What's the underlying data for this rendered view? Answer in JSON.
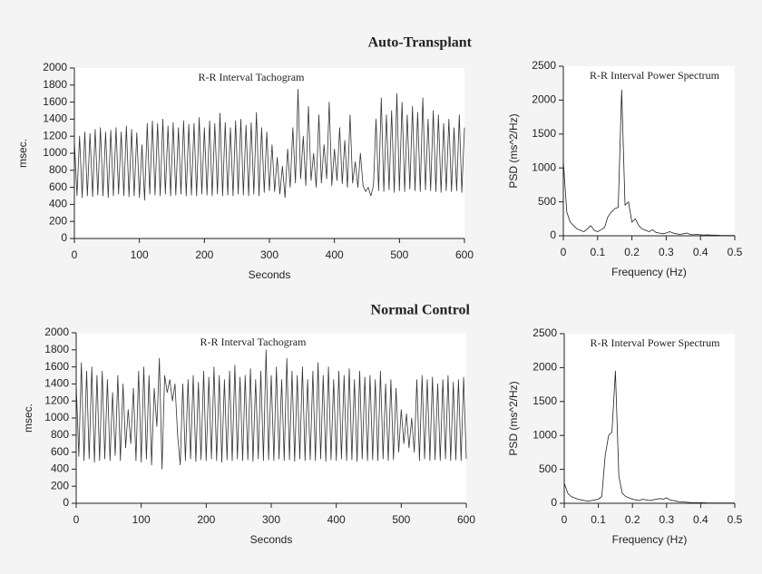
{
  "headings": [
    "Auto-Transplant",
    "Normal Control"
  ],
  "chart_data": [
    {
      "type": "line",
      "title": "R-R Interval Tachogram",
      "xlabel": "Seconds",
      "ylabel": "msec.",
      "color": "#333333",
      "xlim": [
        0,
        600
      ],
      "xticks": [
        0,
        100,
        200,
        300,
        400,
        500,
        600
      ],
      "ylim": [
        0,
        2000
      ],
      "yticks": [
        0,
        200,
        400,
        600,
        800,
        1000,
        1200,
        1400,
        1600,
        1800,
        2000
      ],
      "x": [
        0,
        4,
        8,
        12,
        16,
        20,
        24,
        28,
        32,
        36,
        40,
        44,
        48,
        52,
        56,
        60,
        64,
        68,
        72,
        76,
        80,
        84,
        88,
        92,
        96,
        100,
        104,
        108,
        112,
        116,
        120,
        124,
        128,
        132,
        136,
        140,
        144,
        148,
        152,
        156,
        160,
        164,
        168,
        172,
        176,
        180,
        184,
        188,
        192,
        196,
        200,
        204,
        208,
        212,
        216,
        220,
        224,
        228,
        232,
        236,
        240,
        244,
        248,
        252,
        256,
        260,
        264,
        268,
        272,
        276,
        280,
        284,
        288,
        292,
        296,
        300,
        304,
        308,
        312,
        316,
        320,
        324,
        328,
        332,
        336,
        340,
        344,
        348,
        352,
        356,
        360,
        364,
        368,
        372,
        376,
        380,
        384,
        388,
        392,
        396,
        400,
        404,
        408,
        412,
        416,
        420,
        424,
        428,
        432,
        436,
        440,
        444,
        448,
        452,
        456,
        460,
        464,
        468,
        472,
        476,
        480,
        484,
        488,
        492,
        496,
        500,
        504,
        508,
        512,
        516,
        520,
        524,
        528,
        532,
        536,
        540,
        544,
        548,
        552,
        556,
        560,
        564,
        568,
        572,
        576,
        580,
        584,
        588,
        592,
        596,
        600
      ],
      "values": [
        1150,
        500,
        1200,
        480,
        1250,
        500,
        1230,
        490,
        1280,
        510,
        1300,
        500,
        1250,
        480,
        1270,
        500,
        1300,
        520,
        1250,
        500,
        1320,
        490,
        1280,
        500,
        1240,
        480,
        1100,
        450,
        1350,
        520,
        1380,
        510,
        1350,
        500,
        1400,
        520,
        1320,
        500,
        1360,
        510,
        1300,
        520,
        1380,
        500,
        1340,
        510,
        1350,
        500,
        1420,
        520,
        1300,
        510,
        1380,
        500,
        1350,
        520,
        1470,
        500,
        1360,
        510,
        1300,
        500,
        1380,
        520,
        1400,
        510,
        1330,
        500,
        1360,
        520,
        1480,
        500,
        1300,
        540,
        1250,
        560,
        1100,
        550,
        950,
        520,
        850,
        480,
        1050,
        600,
        1300,
        650,
        1750,
        700,
        1200,
        620,
        1550,
        680,
        1000,
        600,
        1450,
        650,
        1100,
        700,
        1600,
        620,
        1050,
        680,
        1300,
        640,
        1150,
        600,
        1450,
        650,
        900,
        600,
        1000,
        620,
        550,
        600,
        500,
        620,
        1400,
        560,
        1650,
        550,
        1450,
        570,
        1500,
        540,
        1700,
        560,
        1600,
        550,
        1450,
        580,
        1550,
        560,
        1480,
        550,
        1650,
        570,
        1400,
        560,
        1500,
        550,
        1450,
        540,
        1350,
        560,
        1400,
        550,
        1300,
        560,
        1450,
        540,
        1300
      ]
    },
    {
      "type": "line",
      "title": "R-R Interval Power Spectrum",
      "xlabel": "Frequency (Hz)",
      "ylabel": "PSD (ms^2/Hz)",
      "color": "#222222",
      "xlim": [
        0,
        0.5
      ],
      "xticks": [
        0,
        0.1,
        0.2,
        0.3,
        0.4,
        0.5
      ],
      "ylim": [
        0,
        2500
      ],
      "yticks": [
        0,
        500,
        1000,
        1500,
        2000,
        2500
      ],
      "x": [
        0,
        0.01,
        0.02,
        0.03,
        0.04,
        0.05,
        0.06,
        0.07,
        0.08,
        0.09,
        0.1,
        0.11,
        0.12,
        0.13,
        0.14,
        0.15,
        0.16,
        0.17,
        0.18,
        0.19,
        0.2,
        0.21,
        0.22,
        0.23,
        0.24,
        0.25,
        0.26,
        0.27,
        0.28,
        0.29,
        0.3,
        0.31,
        0.32,
        0.33,
        0.34,
        0.35,
        0.36,
        0.37,
        0.38,
        0.39,
        0.4,
        0.41,
        0.42,
        0.43,
        0.44,
        0.45,
        0.46,
        0.47,
        0.48,
        0.49,
        0.5
      ],
      "values": [
        1100,
        350,
        200,
        150,
        100,
        80,
        60,
        100,
        150,
        80,
        60,
        90,
        120,
        280,
        350,
        400,
        420,
        2150,
        450,
        500,
        200,
        250,
        150,
        100,
        80,
        60,
        90,
        50,
        40,
        30,
        40,
        60,
        40,
        30,
        20,
        30,
        40,
        20,
        15,
        20,
        15,
        10,
        15,
        10,
        10,
        8,
        5,
        5,
        5,
        5,
        5
      ]
    },
    {
      "type": "line",
      "title": "R-R Interval Tachogram",
      "xlabel": "Seconds",
      "ylabel": "msec.",
      "color": "#333333",
      "xlim": [
        0,
        600
      ],
      "xticks": [
        0,
        100,
        200,
        300,
        400,
        500,
        600
      ],
      "ylim": [
        0,
        2000
      ],
      "yticks": [
        0,
        200,
        400,
        600,
        800,
        1000,
        1200,
        1400,
        1600,
        1800,
        2000
      ],
      "x": [
        0,
        4,
        8,
        12,
        16,
        20,
        24,
        28,
        32,
        36,
        40,
        44,
        48,
        52,
        56,
        60,
        64,
        68,
        72,
        76,
        80,
        84,
        88,
        92,
        96,
        100,
        104,
        108,
        112,
        116,
        120,
        124,
        128,
        132,
        136,
        140,
        144,
        148,
        152,
        156,
        160,
        164,
        168,
        172,
        176,
        180,
        184,
        188,
        192,
        196,
        200,
        204,
        208,
        212,
        216,
        220,
        224,
        228,
        232,
        236,
        240,
        244,
        248,
        252,
        256,
        260,
        264,
        268,
        272,
        276,
        280,
        284,
        288,
        292,
        296,
        300,
        304,
        308,
        312,
        316,
        320,
        324,
        328,
        332,
        336,
        340,
        344,
        348,
        352,
        356,
        360,
        364,
        368,
        372,
        376,
        380,
        384,
        388,
        392,
        396,
        400,
        404,
        408,
        412,
        416,
        420,
        424,
        428,
        432,
        436,
        440,
        444,
        448,
        452,
        456,
        460,
        464,
        468,
        472,
        476,
        480,
        484,
        488,
        492,
        496,
        500,
        504,
        508,
        512,
        516,
        520,
        524,
        528,
        532,
        536,
        540,
        544,
        548,
        552,
        556,
        560,
        564,
        568,
        572,
        576,
        580,
        584,
        588,
        592,
        596,
        600
      ],
      "values": [
        1400,
        550,
        1650,
        500,
        1550,
        520,
        1600,
        480,
        1500,
        500,
        1550,
        520,
        1450,
        500,
        1300,
        560,
        1500,
        500,
        1400,
        650,
        1100,
        700,
        1350,
        500,
        1550,
        480,
        1600,
        520,
        1500,
        450,
        1350,
        900,
        1700,
        400,
        1500,
        1300,
        1450,
        1200,
        1400,
        800,
        450,
        1400,
        500,
        1450,
        520,
        1500,
        490,
        1420,
        510,
        1550,
        500,
        1480,
        520,
        1600,
        500,
        1500,
        480,
        1450,
        510,
        1550,
        500,
        1620,
        520,
        1480,
        500,
        1500,
        510,
        1580,
        490,
        1450,
        520,
        1550,
        500,
        1800,
        510,
        1500,
        500,
        1600,
        520,
        1450,
        500,
        1700,
        510,
        1550,
        490,
        1500,
        520,
        1600,
        500,
        1450,
        510,
        1550,
        500,
        1650,
        520,
        1500,
        490,
        1600,
        510,
        1450,
        500,
        1550,
        520,
        1500,
        500,
        1580,
        510,
        1450,
        490,
        1550,
        520,
        1480,
        500,
        1500,
        510,
        1450,
        500,
        1550,
        520,
        1400,
        500,
        1450,
        510,
        1350,
        600,
        1100,
        700,
        1050,
        650,
        1000,
        600,
        1450,
        500,
        1500,
        520,
        1450,
        500,
        1480,
        510,
        1400,
        500,
        1450,
        520,
        1500,
        500,
        1420,
        510,
        1450,
        500,
        1480,
        520
      ]
    },
    {
      "type": "line",
      "title": "R-R Interval Power Spectrum",
      "xlabel": "Frequency (Hz)",
      "ylabel": "PSD (ms^2/Hz)",
      "color": "#222222",
      "xlim": [
        0,
        0.5
      ],
      "xticks": [
        0,
        0.1,
        0.2,
        0.3,
        0.4,
        0.5
      ],
      "ylim": [
        0,
        2500
      ],
      "yticks": [
        0,
        500,
        1000,
        1500,
        2000,
        2500
      ],
      "x": [
        0,
        0.01,
        0.02,
        0.03,
        0.04,
        0.05,
        0.06,
        0.07,
        0.08,
        0.09,
        0.1,
        0.11,
        0.12,
        0.13,
        0.14,
        0.15,
        0.16,
        0.17,
        0.18,
        0.19,
        0.2,
        0.21,
        0.22,
        0.23,
        0.24,
        0.25,
        0.26,
        0.27,
        0.28,
        0.29,
        0.3,
        0.31,
        0.32,
        0.33,
        0.34,
        0.35,
        0.36,
        0.37,
        0.38,
        0.39,
        0.4,
        0.41,
        0.42,
        0.43,
        0.44,
        0.45,
        0.46,
        0.47,
        0.48,
        0.49,
        0.5
      ],
      "values": [
        300,
        150,
        100,
        80,
        60,
        50,
        40,
        30,
        40,
        50,
        60,
        100,
        700,
        1000,
        1050,
        1950,
        400,
        150,
        100,
        80,
        60,
        50,
        40,
        60,
        50,
        40,
        50,
        60,
        70,
        60,
        80,
        50,
        40,
        30,
        20,
        20,
        15,
        10,
        10,
        10,
        8,
        8,
        5,
        5,
        5,
        5,
        5,
        5,
        5,
        5,
        5
      ]
    }
  ]
}
